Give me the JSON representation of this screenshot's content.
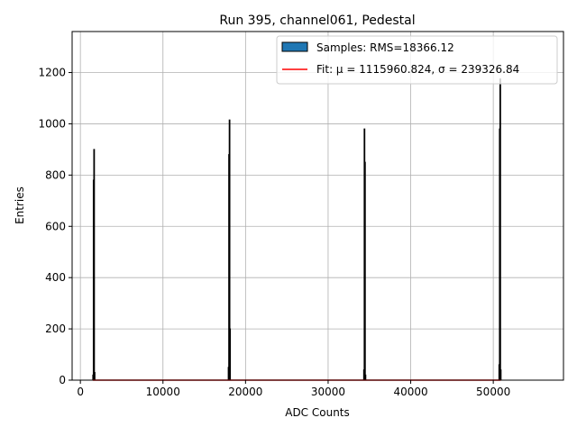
{
  "chart_data": {
    "type": "histogram",
    "title": "Run 395, channel061, Pedestal",
    "xlabel": "ADC Counts",
    "ylabel": "Entries",
    "xlim": [
      -1000,
      58500
    ],
    "ylim": [
      0,
      1360
    ],
    "xticks": [
      0,
      10000,
      20000,
      30000,
      40000,
      50000
    ],
    "xtick_labels": [
      "0",
      "10000",
      "20000",
      "30000",
      "40000",
      "50000"
    ],
    "yticks": [
      0,
      200,
      400,
      600,
      800,
      1000,
      1200
    ],
    "ytick_labels": [
      "0",
      "200",
      "400",
      "600",
      "800",
      "1000",
      "1200"
    ],
    "grid": true,
    "legend_position": "top-right",
    "legend": [
      {
        "label": "Samples: RMS=18366.12",
        "kind": "patch",
        "color": "#1f77b4"
      },
      {
        "label": "Fit: μ = 1115960.824, σ = 239326.84",
        "kind": "line",
        "color": "#ff0000"
      }
    ],
    "series": [
      {
        "name": "Samples: RMS=18366.12",
        "kind": "histogram",
        "color": "#1f77b4",
        "edge_color": "#000000",
        "bins": [
          {
            "x0": 1500,
            "x1": 1560,
            "count": 20
          },
          {
            "x0": 1560,
            "x1": 1620,
            "count": 780
          },
          {
            "x0": 1620,
            "x1": 1680,
            "count": 900
          },
          {
            "x0": 1680,
            "x1": 1740,
            "count": 30
          },
          {
            "x0": 17900,
            "x1": 17960,
            "count": 50
          },
          {
            "x0": 17960,
            "x1": 18020,
            "count": 880
          },
          {
            "x0": 18020,
            "x1": 18080,
            "count": 1015
          },
          {
            "x0": 18080,
            "x1": 18140,
            "count": 200
          },
          {
            "x0": 34300,
            "x1": 34360,
            "count": 40
          },
          {
            "x0": 34360,
            "x1": 34420,
            "count": 980
          },
          {
            "x0": 34420,
            "x1": 34480,
            "count": 850
          },
          {
            "x0": 34480,
            "x1": 34540,
            "count": 20
          },
          {
            "x0": 50680,
            "x1": 50740,
            "count": 60
          },
          {
            "x0": 50740,
            "x1": 50800,
            "count": 980
          },
          {
            "x0": 50800,
            "x1": 50860,
            "count": 1175
          },
          {
            "x0": 50860,
            "x1": 50920,
            "count": 40
          }
        ]
      },
      {
        "name": "Fit: μ = 1115960.824, σ = 239326.84",
        "kind": "line",
        "color": "#ff0000",
        "x": [
          1500,
          50900
        ],
        "y": [
          0,
          0
        ]
      }
    ]
  }
}
